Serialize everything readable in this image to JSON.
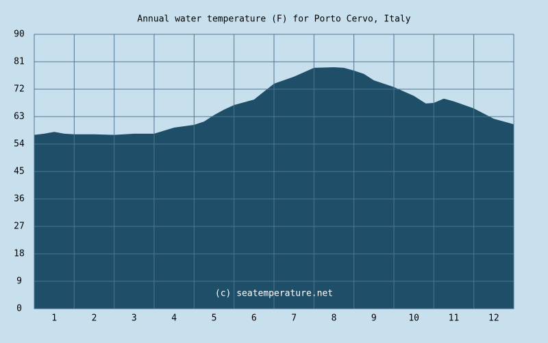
{
  "chart_data": {
    "type": "area",
    "title": "Annual water temperature (F) for Porto Cervo, Italy",
    "annotation": "(c) seatemperature.net",
    "x": [
      0.5,
      0.75,
      1.0,
      1.25,
      1.5,
      2.0,
      2.5,
      3.0,
      3.5,
      4.0,
      4.5,
      4.75,
      5.0,
      5.25,
      5.5,
      6.0,
      6.5,
      7.0,
      7.5,
      8.0,
      8.25,
      8.5,
      8.75,
      9.0,
      9.5,
      10.0,
      10.3,
      10.5,
      10.75,
      11.0,
      11.5,
      12.0,
      12.5
    ],
    "values": [
      57.0,
      57.4,
      58.0,
      57.4,
      57.2,
      57.2,
      57.0,
      57.4,
      57.4,
      59.4,
      60.3,
      61.4,
      63.5,
      65.3,
      66.8,
      68.6,
      73.8,
      76.1,
      79.0,
      79.2,
      79.0,
      78.1,
      77.0,
      74.9,
      72.7,
      69.8,
      67.3,
      67.5,
      68.9,
      68.0,
      65.7,
      62.3,
      60.5
    ],
    "color": "#1f4e69",
    "xlim": [
      0.5,
      12.5
    ],
    "xticks": [
      1,
      2,
      3,
      4,
      5,
      6,
      7,
      8,
      9,
      10,
      11,
      12
    ],
    "ylim": [
      0,
      90
    ],
    "yticks": [
      0,
      9,
      18,
      27,
      36,
      45,
      54,
      63,
      72,
      81,
      90
    ],
    "grid": true
  }
}
